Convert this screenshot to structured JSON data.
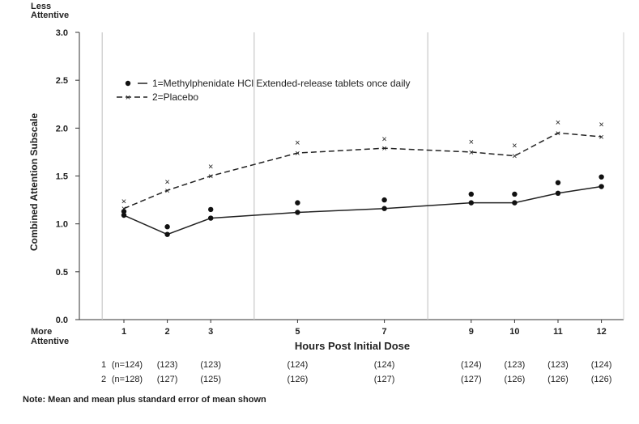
{
  "chart_data": {
    "type": "line",
    "top_label_line1": "Less",
    "top_label_line2": "Attentive",
    "bottom_label_line1": "More",
    "bottom_label_line2": "Attentive",
    "ylabel": "Combined Attention Subscale",
    "xlabel": "Hours Post Initial Dose",
    "ylim": [
      0,
      3.0
    ],
    "yticks": [
      "0.0",
      "0.5",
      "1.0",
      "1.5",
      "2.0",
      "2.5",
      "3.0"
    ],
    "x": [
      1,
      2,
      3,
      5,
      7,
      9,
      10,
      11,
      12
    ],
    "x_tick_labels": [
      "1",
      "2",
      "3",
      "5",
      "7",
      "9",
      "10",
      "11",
      "12"
    ],
    "vertical_reference_lines": [
      0.5,
      4,
      8
    ],
    "series": [
      {
        "legend_label": "1=Methylphenidate HCl Extended-release tablets once daily",
        "marker": "dot",
        "line": "solid",
        "mean": [
          1.09,
          0.89,
          1.06,
          1.12,
          1.16,
          1.22,
          1.22,
          1.32,
          1.39
        ],
        "mean_plus_se": [
          1.13,
          0.97,
          1.15,
          1.22,
          1.25,
          1.31,
          1.31,
          1.43,
          1.49
        ],
        "n_labels": [
          "(n=124)",
          "(123)",
          "(123)",
          "(124)",
          "(124)",
          "(124)",
          "(123)",
          "(123)",
          "(124)"
        ],
        "row_label": "1"
      },
      {
        "legend_label": "2=Placebo",
        "marker": "x",
        "line": "dashed",
        "mean": [
          1.16,
          1.35,
          1.5,
          1.74,
          1.79,
          1.75,
          1.71,
          1.95,
          1.91
        ],
        "mean_plus_se": [
          1.24,
          1.44,
          1.6,
          1.85,
          1.89,
          1.86,
          1.82,
          2.06,
          2.04
        ],
        "n_labels": [
          "(n=128)",
          "(127)",
          "(125)",
          "(126)",
          "(127)",
          "(127)",
          "(126)",
          "(126)",
          "(126)"
        ],
        "row_label": "2"
      }
    ],
    "legend_position": "top-left inside plot"
  },
  "footnote": "Note:  Mean and mean plus standard error of mean shown"
}
